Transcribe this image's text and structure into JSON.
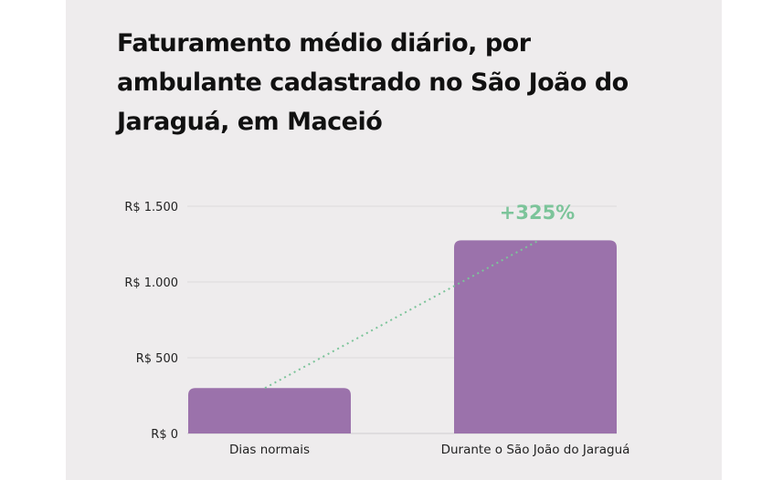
{
  "chart_data": {
    "type": "bar",
    "title": "Faturamento médio diário, por ambulante cadastrado no São João do Jaraguá, em Maceió",
    "categories": [
      "Dias normais",
      "Durante o São João do Jaraguá"
    ],
    "values": [
      300,
      1275
    ],
    "xlabel": "",
    "ylabel": "",
    "ylim": [
      0,
      1500
    ],
    "yticks": [
      0,
      500,
      1000,
      1500
    ],
    "ytick_labels": [
      "R$ 0",
      "R$ 500",
      "R$ 1.000",
      "R$ 1.500"
    ],
    "grid": true,
    "annotation": "+325%",
    "colors": {
      "bar": "#9b72ab",
      "annotation": "#7cc49a",
      "grid": "#dcdadb",
      "background": "#eeeced"
    }
  }
}
